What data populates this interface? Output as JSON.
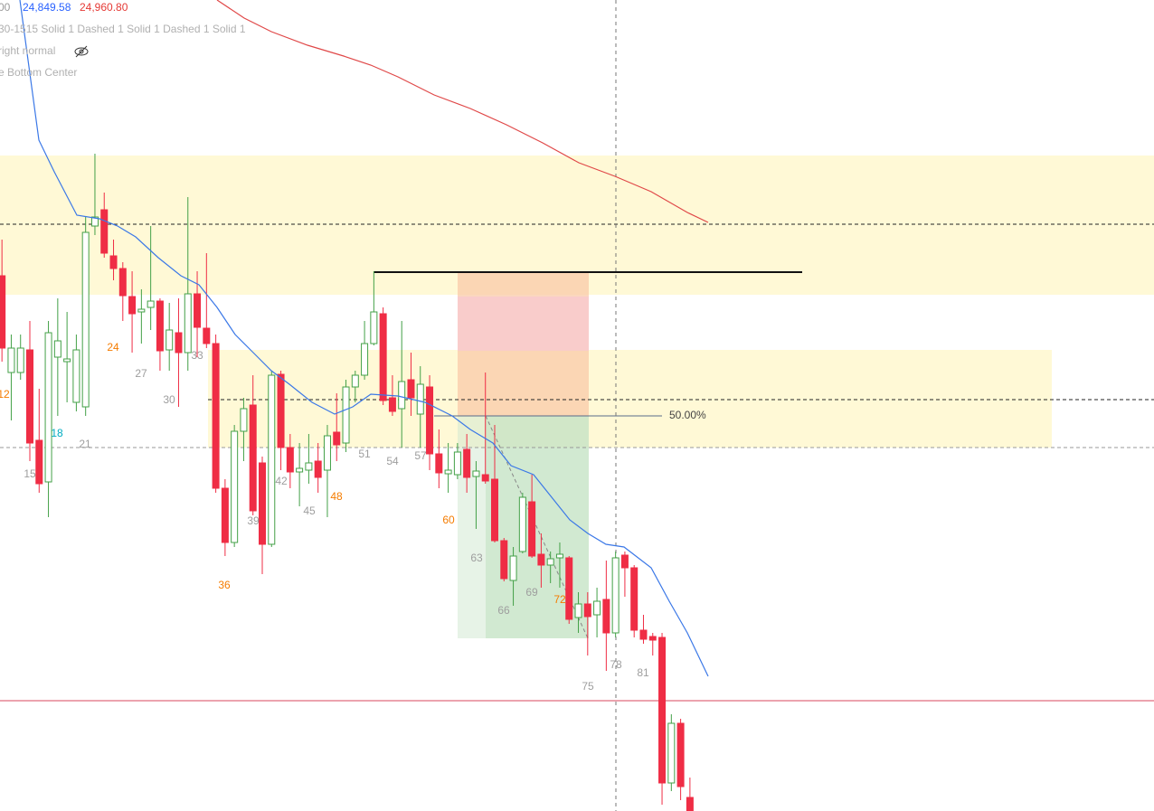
{
  "legend": {
    "cut_value": "00",
    "ma_fast": "24,849.58",
    "ma_slow": "24,960.80",
    "style_line": "30-1515 Solid 1 Dashed 1 Solid 1 Dashed 1 Solid 1",
    "position_line": "right normal",
    "placement_line": "e Bottom Center"
  },
  "fib_label": "50.00%",
  "bar_labels": [
    {
      "text": "12",
      "color": "#f57c00"
    },
    {
      "text": "15",
      "color": "#9e9e9e"
    },
    {
      "text": "18",
      "color": "#00acc1"
    },
    {
      "text": "21",
      "color": "#9e9e9e"
    },
    {
      "text": "24",
      "color": "#f57c00"
    },
    {
      "text": "27",
      "color": "#9e9e9e"
    },
    {
      "text": "30",
      "color": "#9e9e9e"
    },
    {
      "text": "33",
      "color": "#9e9e9e"
    },
    {
      "text": "36",
      "color": "#f57c00"
    },
    {
      "text": "39",
      "color": "#9e9e9e"
    },
    {
      "text": "42",
      "color": "#9e9e9e"
    },
    {
      "text": "45",
      "color": "#9e9e9e"
    },
    {
      "text": "48",
      "color": "#f57c00"
    },
    {
      "text": "51",
      "color": "#9e9e9e"
    },
    {
      "text": "54",
      "color": "#9e9e9e"
    },
    {
      "text": "57",
      "color": "#9e9e9e"
    },
    {
      "text": "60",
      "color": "#f57c00"
    },
    {
      "text": "63",
      "color": "#9e9e9e"
    },
    {
      "text": "66",
      "color": "#9e9e9e"
    },
    {
      "text": "69",
      "color": "#9e9e9e"
    },
    {
      "text": "72",
      "color": "#f57c00"
    },
    {
      "text": "75",
      "color": "#9e9e9e"
    },
    {
      "text": "78",
      "color": "#9e9e9e"
    },
    {
      "text": "81",
      "color": "#9e9e9e"
    }
  ]
}
